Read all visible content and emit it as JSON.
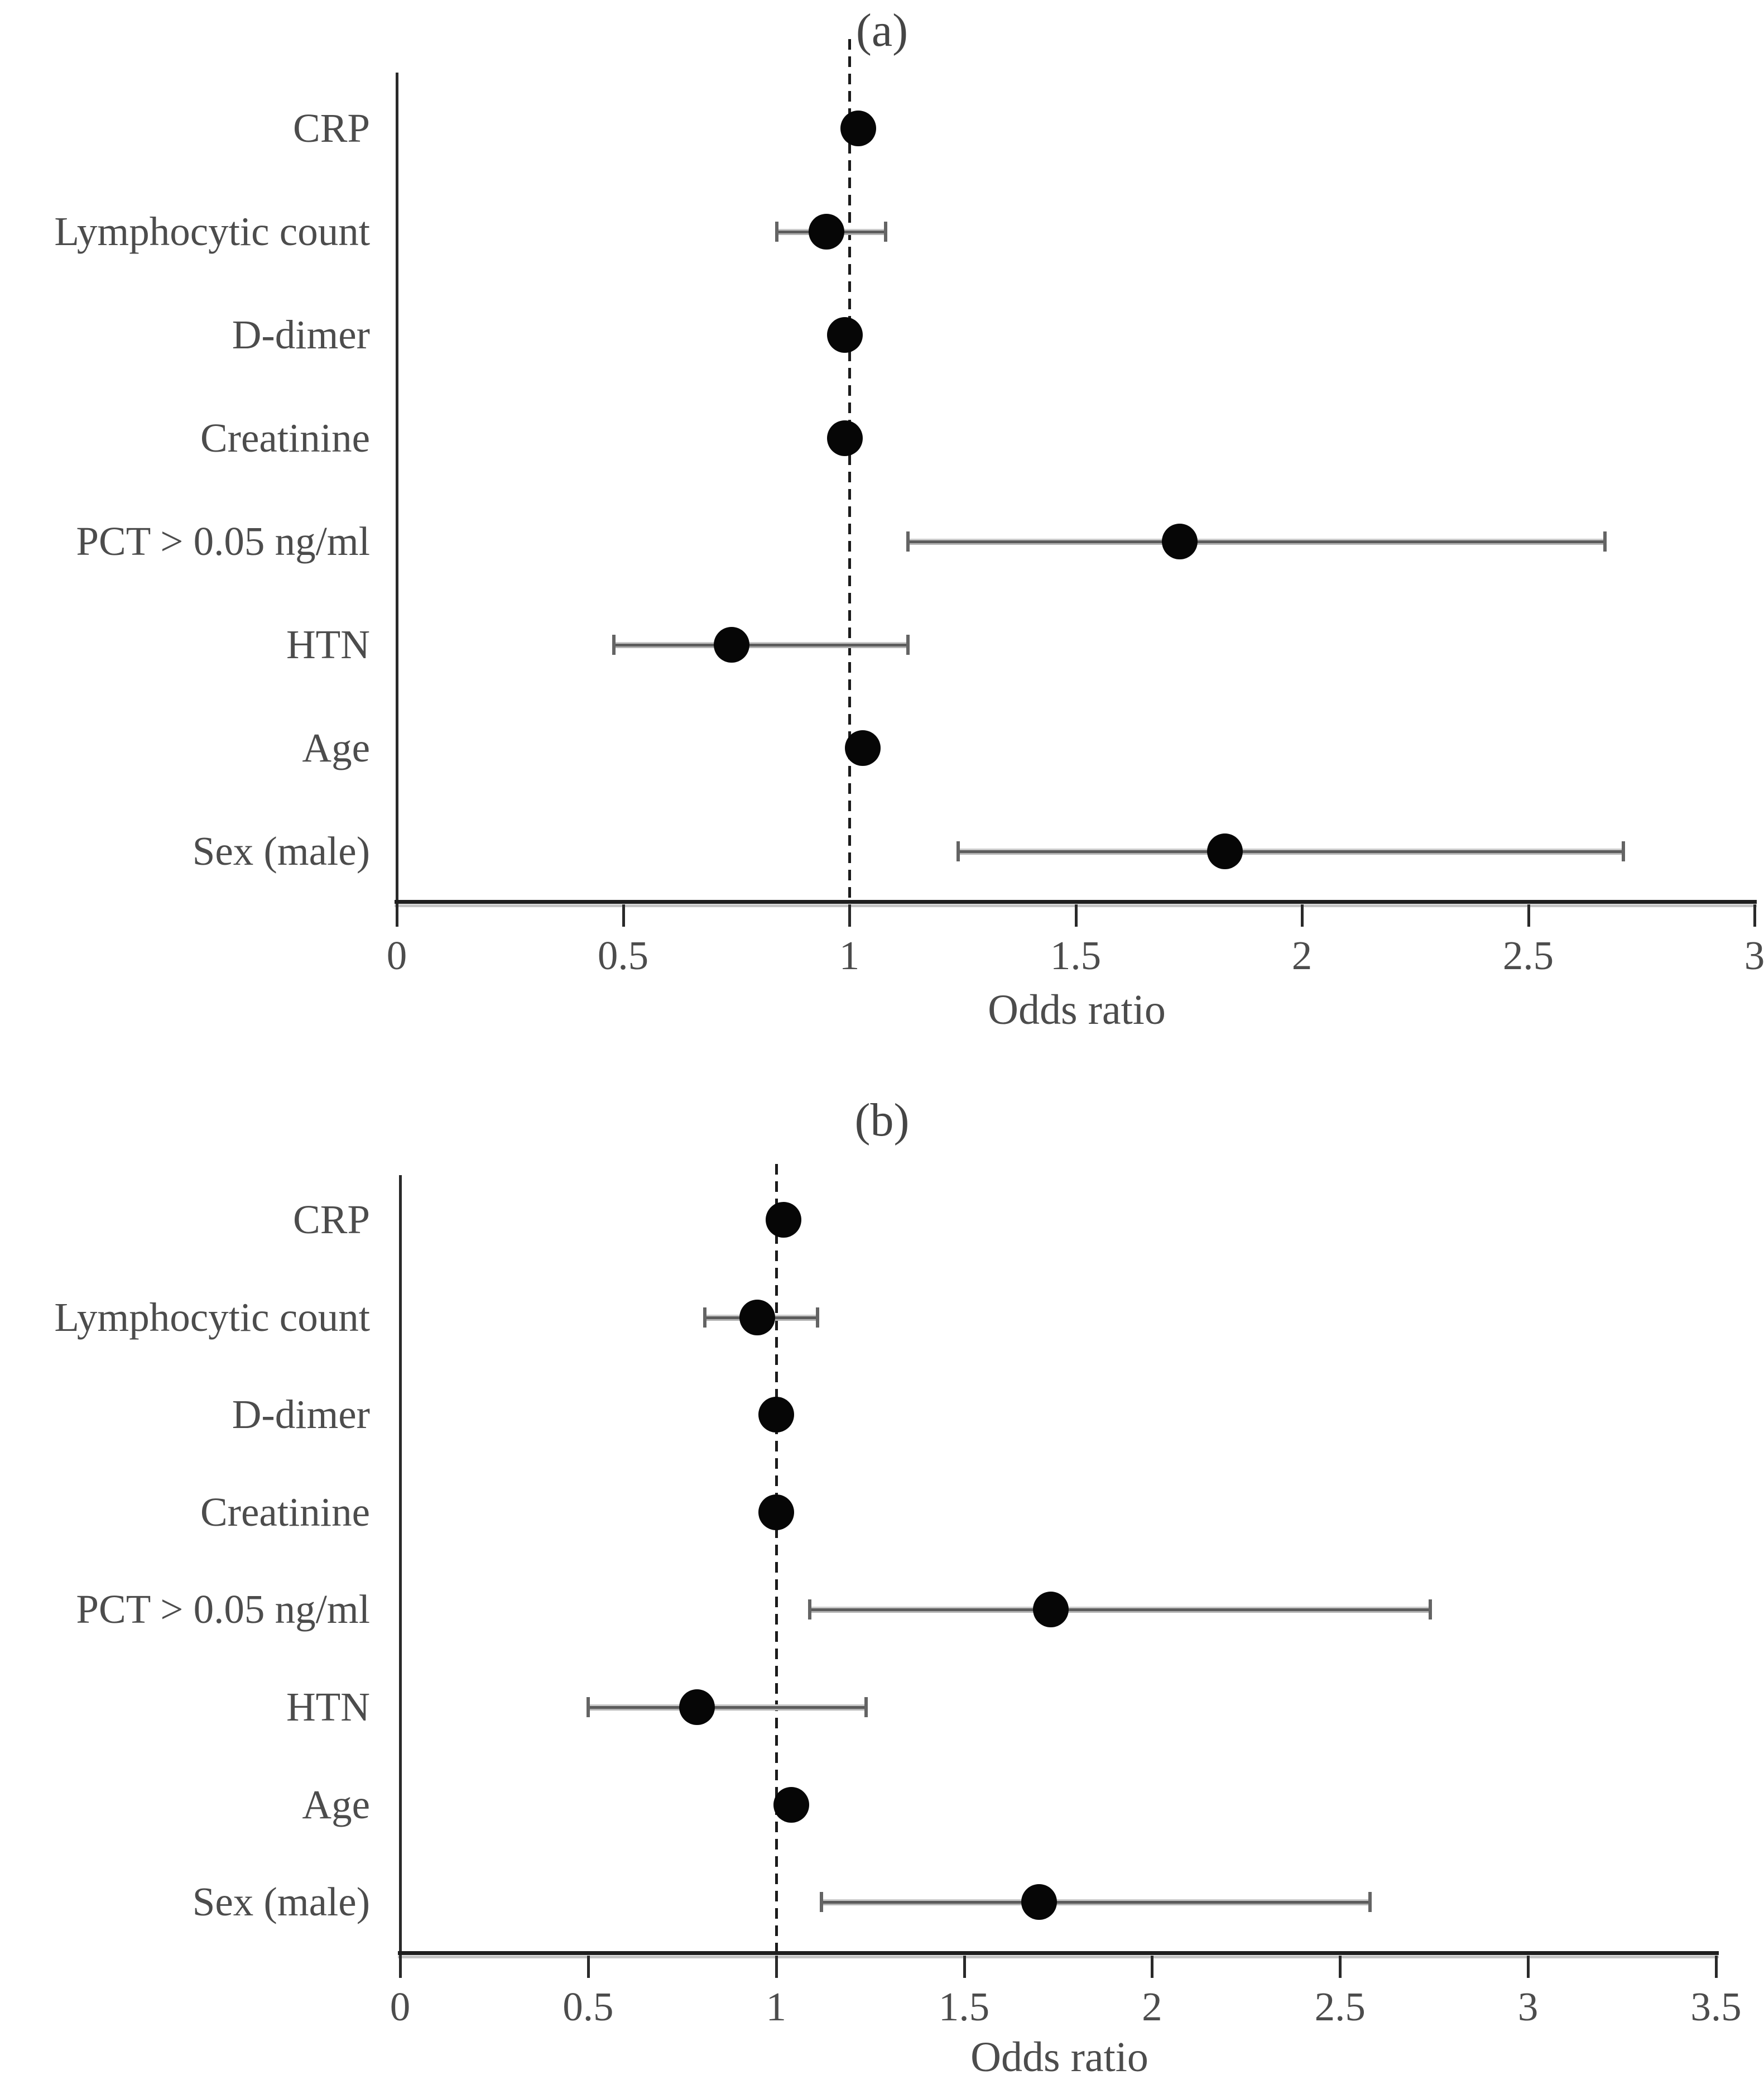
{
  "figure": {
    "background_color": "#ffffff",
    "marker_color": "#060606",
    "error_bar_color": "#5c5c5c",
    "error_bar_halo_color": "#c6c6c6",
    "axis_color": "#1f1f1f",
    "axis_shadow_color": "#c4c4c4",
    "label_text_color": "#4c4c4c",
    "title_text_color": "#454545",
    "reference_line_color": "#1b1b1b"
  },
  "chart_data": [
    {
      "type": "scatter",
      "subtype": "forest-plot",
      "title": "(a)",
      "xlabel": "Odds ratio",
      "xlim": [
        0,
        3
      ],
      "xticks": [
        "0",
        "0.5",
        "1",
        "1.5",
        "2",
        "2.5",
        "3"
      ],
      "ref_line_x": 1,
      "grid": false,
      "categories": [
        "CRP",
        "Lymphocytic count",
        "D-dimer",
        "Creatinine",
        "PCT > 0.05 ng/ml",
        "HTN",
        "Age",
        "Sex (male)"
      ],
      "series": [
        {
          "name": "Odds ratio",
          "values": [
            1.02,
            0.95,
            0.99,
            0.99,
            1.73,
            0.74,
            1.03,
            1.83
          ],
          "ci_low": [
            null,
            0.84,
            null,
            null,
            1.13,
            0.48,
            null,
            1.24
          ],
          "ci_high": [
            null,
            1.08,
            null,
            null,
            2.67,
            1.13,
            null,
            2.71
          ]
        }
      ]
    },
    {
      "type": "scatter",
      "subtype": "forest-plot",
      "title": "(b)",
      "xlabel": "Odds ratio",
      "xlim": [
        0,
        3.5
      ],
      "xticks": [
        "0",
        "0.5",
        "1",
        "1.5",
        "2",
        "2.5",
        "3",
        "3.5"
      ],
      "ref_line_x": 1,
      "grid": false,
      "categories": [
        "CRP",
        "Lymphocytic count",
        "D-dimer",
        "Creatinine",
        "PCT > 0.05 ng/ml",
        "HTN",
        "Age",
        "Sex (male)"
      ],
      "series": [
        {
          "name": "Odds ratio",
          "values": [
            1.02,
            0.95,
            1.0,
            1.0,
            1.73,
            0.79,
            1.04,
            1.7
          ],
          "ci_low": [
            null,
            0.81,
            null,
            null,
            1.09,
            0.5,
            null,
            1.12
          ],
          "ci_high": [
            null,
            1.11,
            null,
            null,
            2.74,
            1.24,
            null,
            2.58
          ]
        }
      ]
    }
  ]
}
